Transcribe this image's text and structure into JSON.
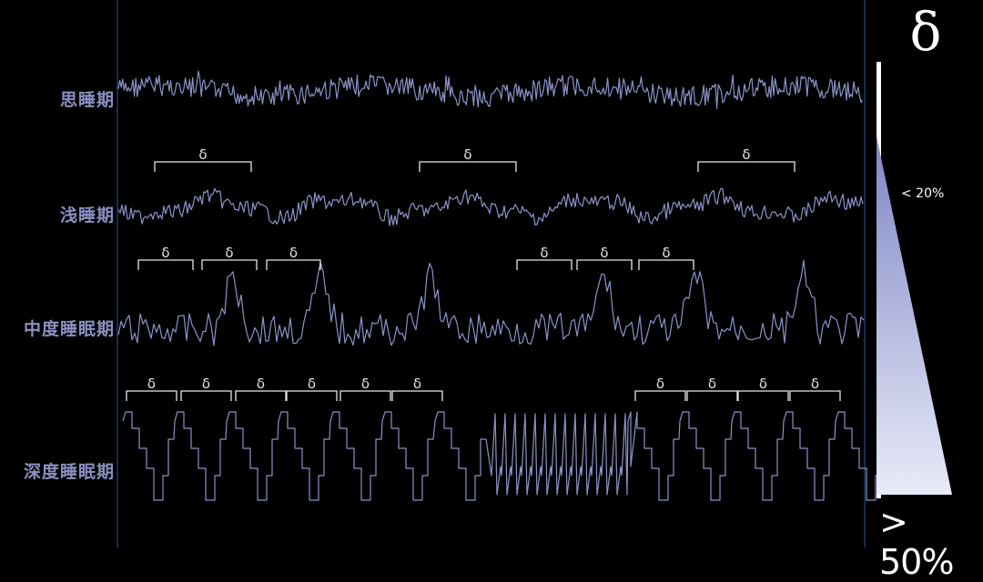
{
  "stages": [
    {
      "label": "思睡期",
      "pattern": "noise",
      "brackets": []
    },
    {
      "label": "浅睡期",
      "pattern": "light",
      "brackets": [
        "δ",
        "δ",
        "δ"
      ]
    },
    {
      "label": "中度睡眠期",
      "pattern": "medium",
      "brackets": [
        "δ",
        "δ",
        "δ",
        "δ",
        "δ",
        "δ"
      ]
    },
    {
      "label": "深度睡眠期",
      "pattern": "deep",
      "brackets": [
        "δ",
        "δ",
        "δ",
        "δ",
        "δ",
        "δ",
        "δ",
        "δ",
        "δ",
        "δ"
      ]
    }
  ],
  "indicator": {
    "symbol": "δ",
    "low_label": "< 20%",
    "high_label": "> 50%",
    "low_fraction": 0.2,
    "high_fraction": 0.5,
    "gradient_top": "#7f86c4",
    "gradient_bottom": "#e8ebf8"
  },
  "colors": {
    "wave": "#8c93c8",
    "label": "#8a90c0",
    "bracket": "#e6e6ee",
    "axis": "#2a4a7a",
    "background": "#000000"
  }
}
